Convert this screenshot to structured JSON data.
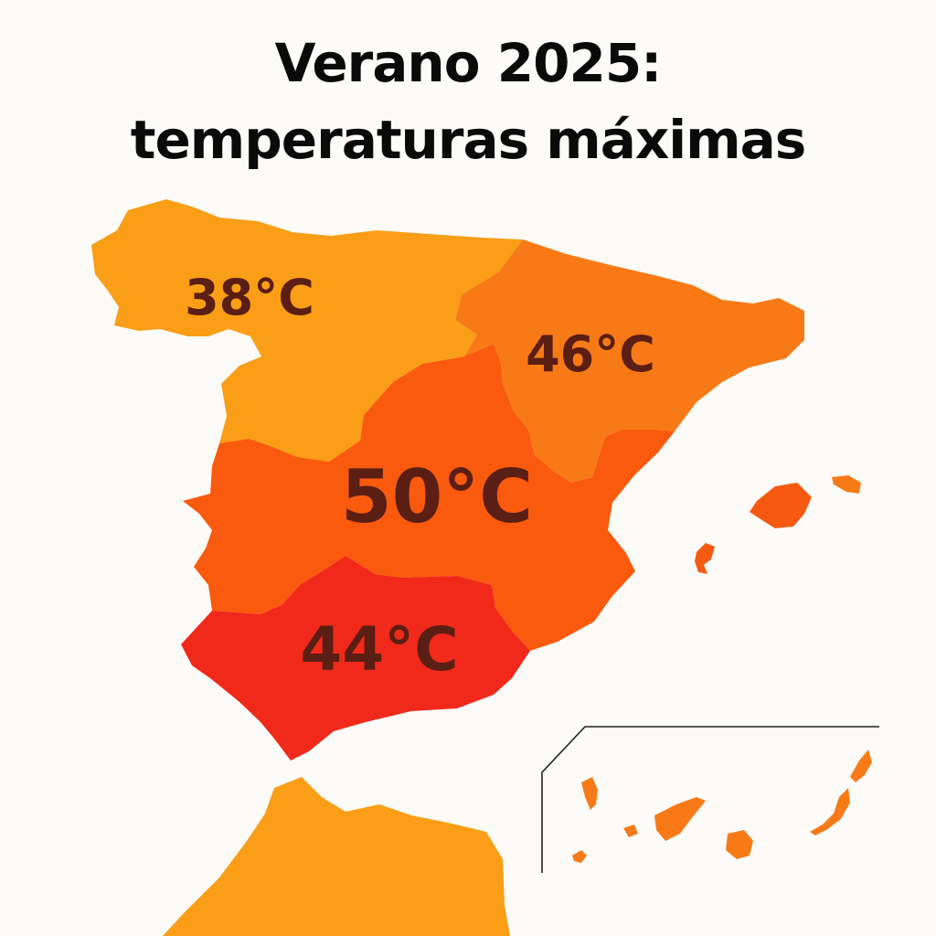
{
  "title": {
    "line1": "Verano 2025:",
    "line2": "temperaturas máximas"
  },
  "regions": [
    {
      "key": "northwest",
      "temperature": "38°C",
      "temperature_value": 38,
      "color": "#f99e16"
    },
    {
      "key": "northeast",
      "temperature": "46°C",
      "temperature_value": 46,
      "color": "#f77a17"
    },
    {
      "key": "center",
      "temperature": "50°C",
      "temperature_value": 50,
      "color": "#fa5a0d"
    },
    {
      "key": "south",
      "temperature": "44°C",
      "temperature_value": 44,
      "color": "#f1291a"
    }
  ],
  "other_colors": {
    "background": "#fcfbf8",
    "africa": "#f99e16",
    "islands": "#f77a17",
    "balearics": "#f55a10",
    "label_text": "#5a1e14",
    "title_text": "#0a0a0a"
  }
}
